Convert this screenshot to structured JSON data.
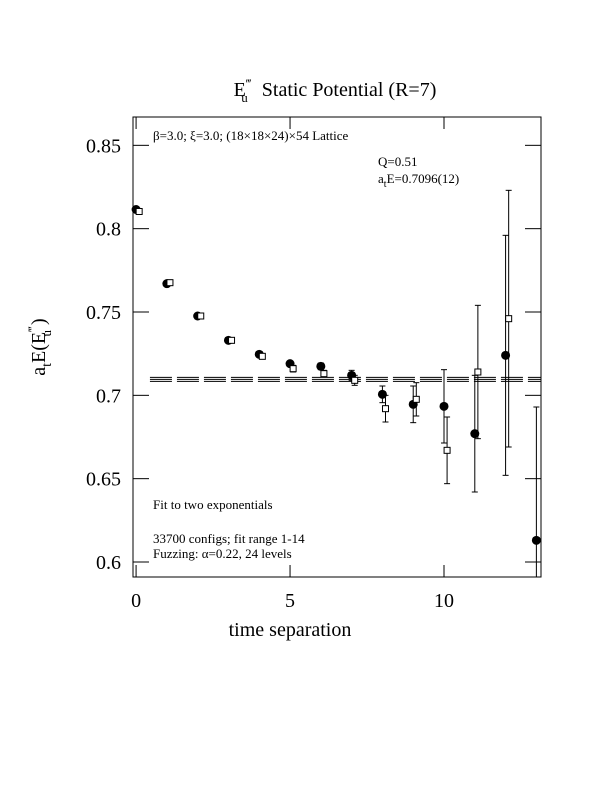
{
  "chart_data": {
    "type": "errorbar-scatter",
    "title": {
      "symbol": "E",
      "sup": "‴",
      "sub": "u",
      "text": "Static Potential (R=7)"
    },
    "y_label": {
      "a": "a",
      "sub": "t",
      "mid": "E(E",
      "sup": "‴",
      "sub2": "u",
      "end": " )"
    },
    "x_label": "time separation",
    "annotations": {
      "lattice": "β=3.0; ξ=3.0; (18×18×24)×54 Lattice",
      "q": "Q=0.51",
      "energy_a": "a",
      "energy_sub": "t",
      "energy_rest": "E=0.7096(12)",
      "fit": "Fit to two exponentials",
      "configs": "33700 configs; fit range 1-14",
      "fuzzing": "Fuzzing: α=0.22, 24 levels"
    },
    "xlim": [
      -0.1,
      13.15
    ],
    "ylim": [
      0.591,
      0.867
    ],
    "xticks": [
      0,
      5,
      10
    ],
    "yticks": [
      0.6,
      0.65,
      0.7,
      0.75,
      0.8,
      0.85
    ],
    "fit": {
      "value": 0.7096,
      "error": 0.0012,
      "x_range": [
        0.45,
        13.15
      ]
    },
    "series": [
      {
        "marker": "circle",
        "color": "#000000",
        "x": [
          0,
          1,
          2,
          3,
          4,
          5,
          6,
          7,
          8,
          9,
          10,
          11,
          12,
          13
        ],
        "values": [
          0.8115,
          0.767,
          0.7476,
          0.733,
          0.7246,
          0.719,
          0.7174,
          0.712,
          0.7006,
          0.6946,
          0.6934,
          0.677,
          0.724,
          0.613
        ],
        "errors": [
          0.001,
          0.001,
          0.001,
          0.001,
          0.001,
          0.001,
          0.002,
          0.003,
          0.005,
          0.011,
          0.022,
          0.035,
          0.072,
          0.08
        ]
      },
      {
        "marker": "square",
        "color": "#000000",
        "x": [
          0.1,
          1.1,
          2.1,
          3.1,
          4.1,
          5.1,
          6.1,
          7.1,
          8.1,
          9.1,
          10.1,
          11.1,
          12.1,
          13.1
        ],
        "values": [
          0.8103,
          0.7676,
          0.7476,
          0.733,
          0.7234,
          0.716,
          0.713,
          0.709,
          0.692,
          0.6976,
          0.667,
          0.714,
          0.746,
          null
        ],
        "errors": [
          0.001,
          0.001,
          0.001,
          0.001,
          0.001,
          0.002,
          0.002,
          0.003,
          0.008,
          0.01,
          0.02,
          0.04,
          0.077,
          null
        ]
      }
    ]
  }
}
